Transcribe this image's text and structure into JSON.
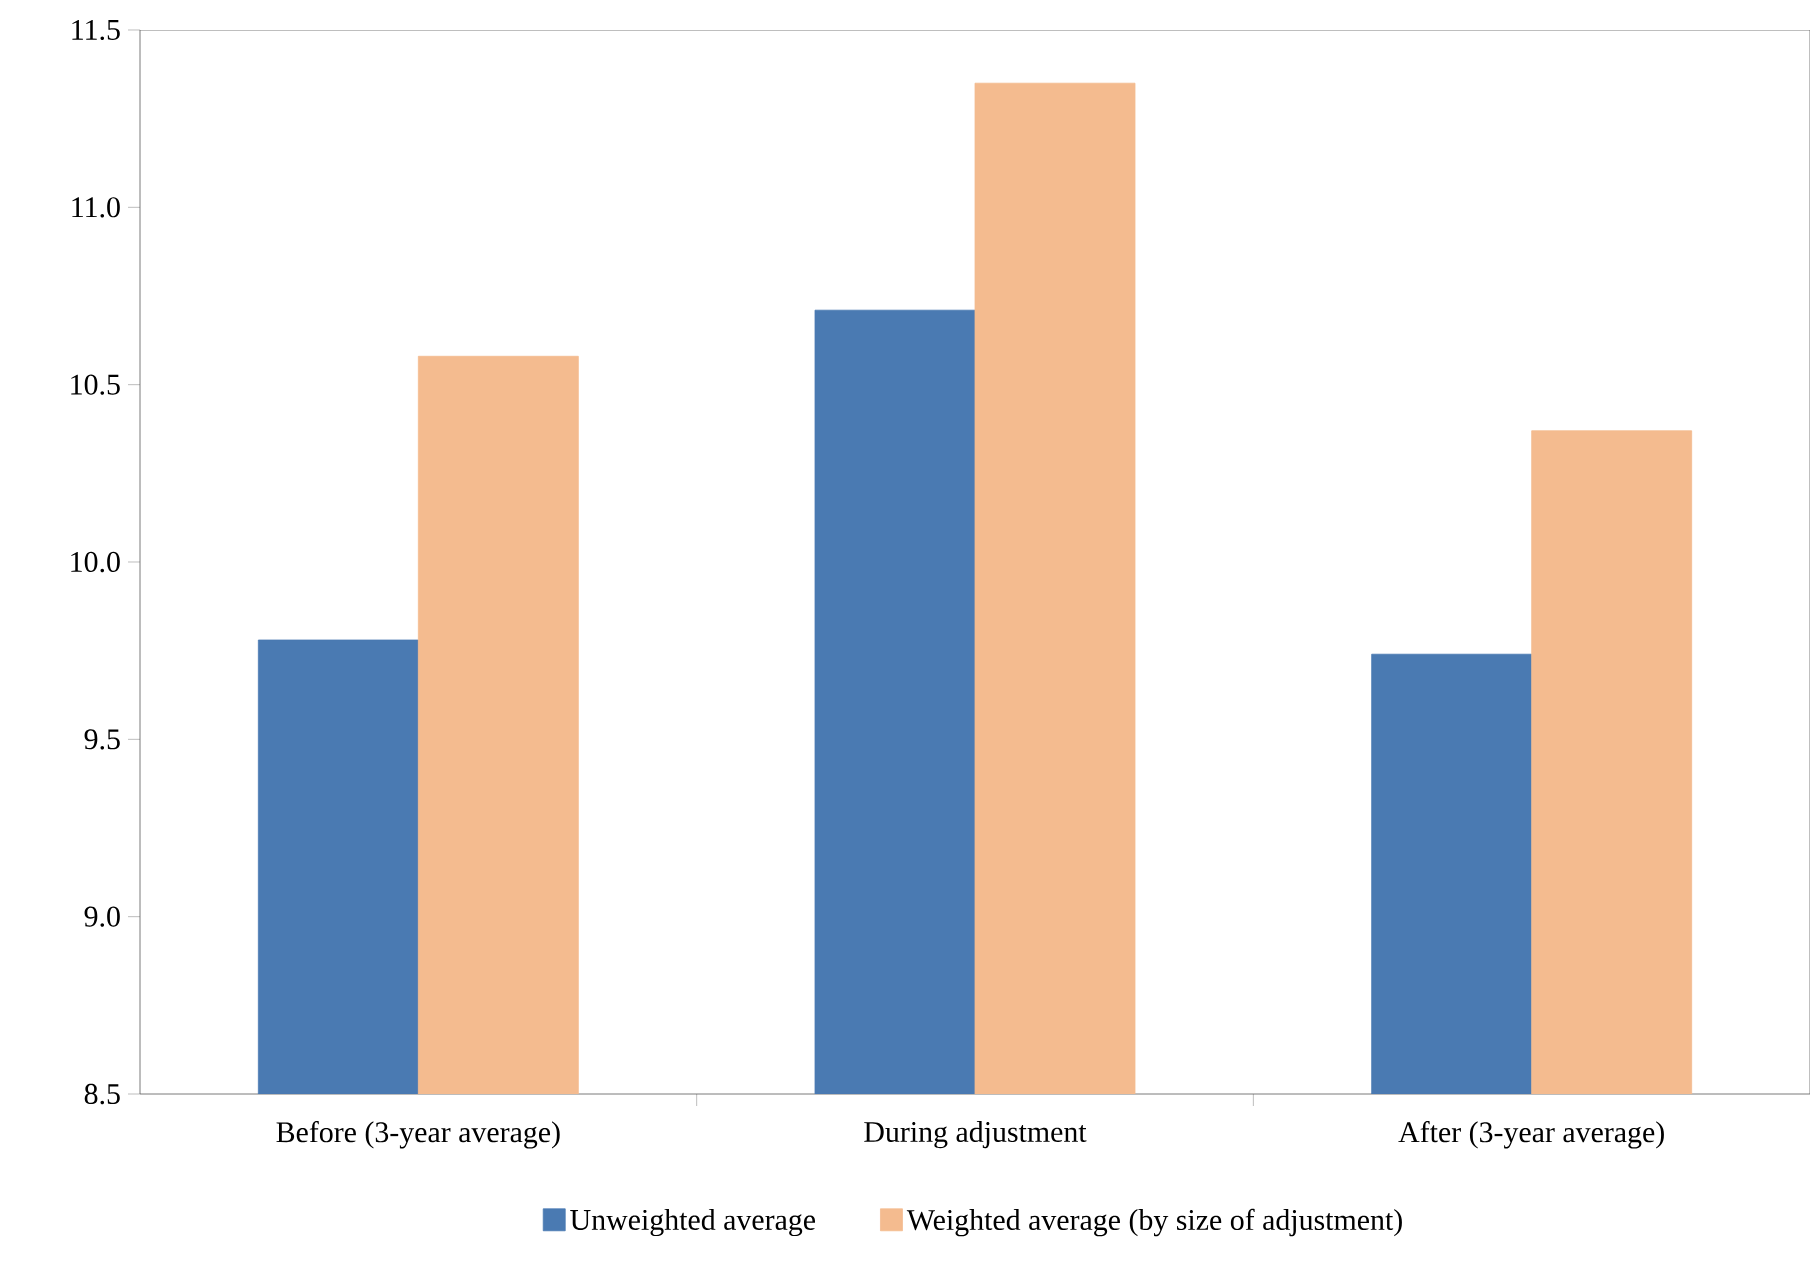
{
  "chart_data": {
    "type": "bar",
    "categories": [
      "Before (3-year average)",
      "During adjustment",
      "After (3-year average)"
    ],
    "series": [
      {
        "name": "Unweighted average",
        "color": "#4a7ab2",
        "values": [
          9.78,
          10.71,
          9.74
        ]
      },
      {
        "name": "Weighted average (by size of adjustment)",
        "color": "#f4bb8f",
        "values": [
          10.58,
          11.35,
          10.37
        ]
      }
    ],
    "ylim": [
      8.5,
      11.5
    ],
    "yticks": [
      8.5,
      {
        "value": 9,
        "label": "9.0"
      },
      9.5,
      {
        "value": 10,
        "label": "10.0"
      },
      10.5,
      {
        "value": 11,
        "label": "11.0"
      },
      11.5
    ],
    "grid": false,
    "legend": "bottom"
  }
}
